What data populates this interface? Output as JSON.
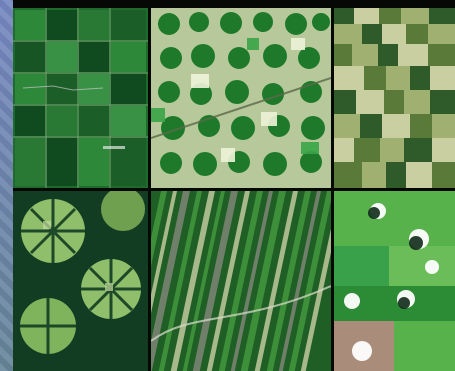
{
  "image": {
    "layout": "3x2 mosaic",
    "panels": [
      {
        "name": "grid-fields-panel",
        "palette": [
          "#1f6b2c",
          "#2f8a3b",
          "#0f4a1f",
          "#6a8f5f"
        ]
      },
      {
        "name": "center-pivot-panel",
        "palette": [
          "#1e7a2a",
          "#39a547",
          "#c9d7a6",
          "#eef3d9"
        ]
      },
      {
        "name": "patchwork-fields-panel",
        "palette": [
          "#5a7a3a",
          "#9fb070",
          "#c9cfa0",
          "#2f5a2a"
        ]
      },
      {
        "name": "radial-clearing-panel",
        "palette": [
          "#123d22",
          "#3f7a3f",
          "#8fbf6a",
          "#c5dca0"
        ]
      },
      {
        "name": "striped-fields-panel",
        "palette": [
          "#1f5f25",
          "#3d8f3a",
          "#a7b88a",
          "#6f7f6a"
        ]
      },
      {
        "name": "cloud-fields-panel",
        "palette": [
          "#2c8b35",
          "#58b24c",
          "#0f2a18",
          "#ffffff"
        ]
      }
    ]
  }
}
